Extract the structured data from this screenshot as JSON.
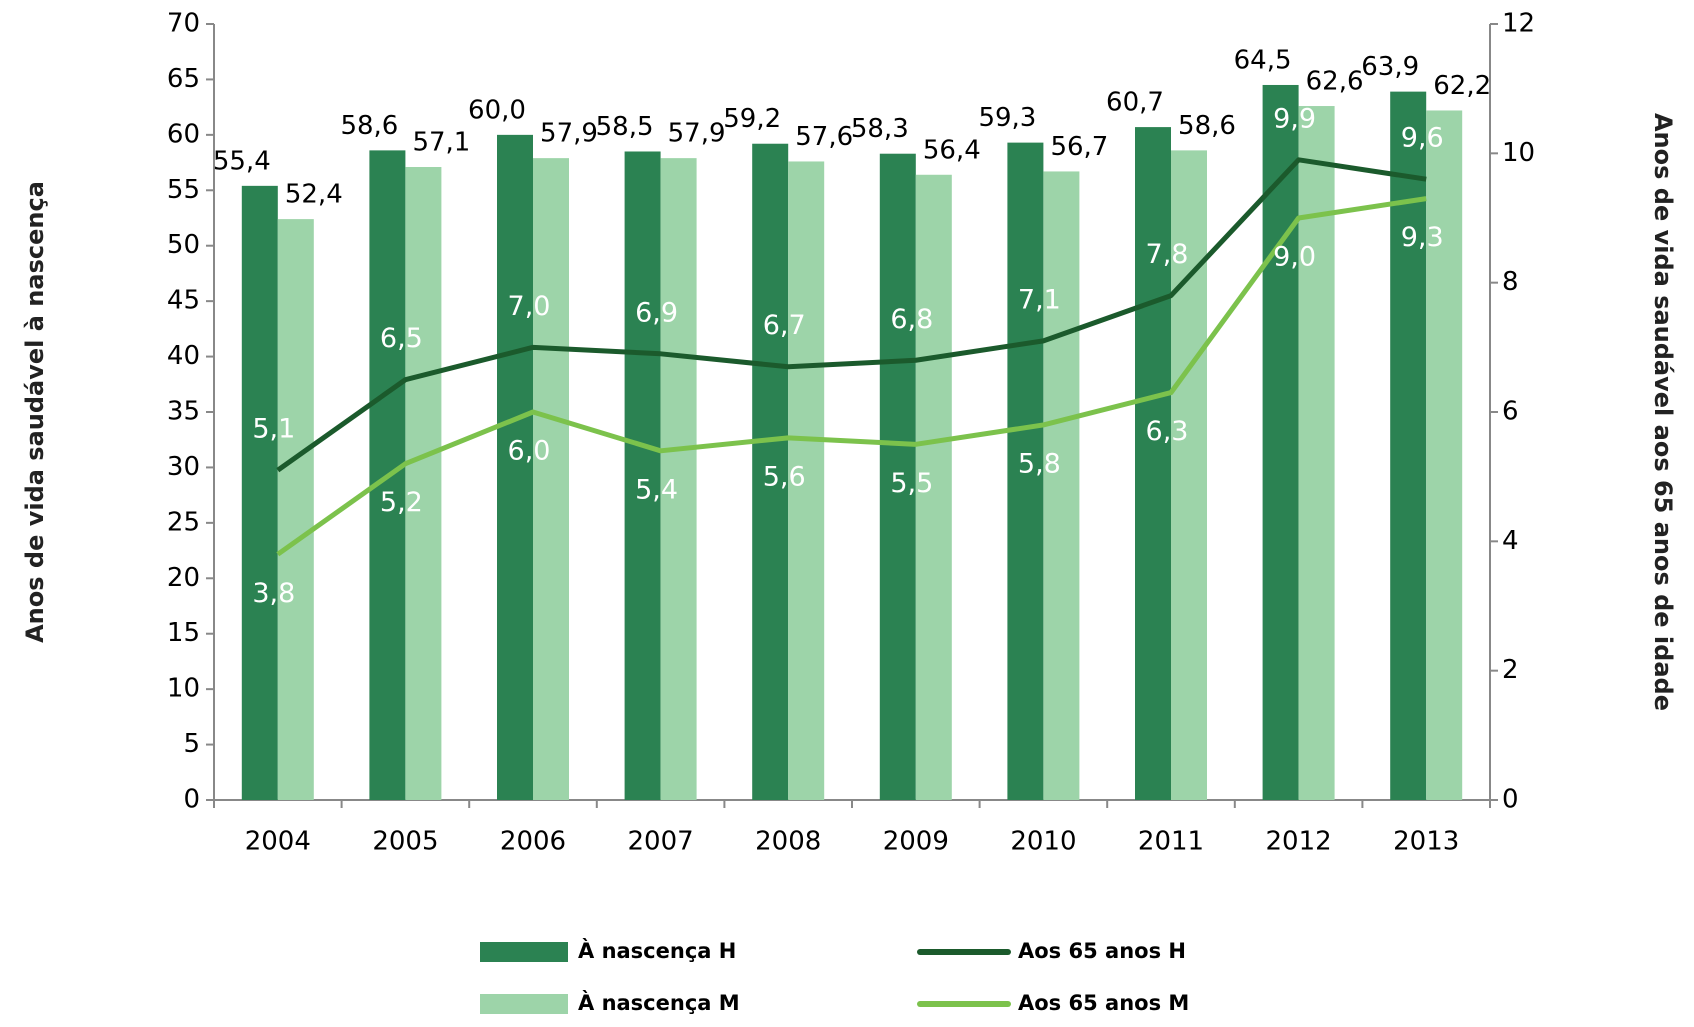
{
  "chart_data": {
    "type": "bar",
    "y_label": "Anos de vida saudável à nascença",
    "y2_label": "Anos de vida saudável aos 65 anos de idade",
    "categories": [
      "2004",
      "2005",
      "2006",
      "2007",
      "2008",
      "2009",
      "2010",
      "2011",
      "2012",
      "2013"
    ],
    "ylim": [
      0,
      70
    ],
    "yticks": [
      0,
      5,
      10,
      15,
      20,
      25,
      30,
      35,
      40,
      45,
      50,
      55,
      60,
      65,
      70
    ],
    "y2lim": [
      0,
      12
    ],
    "y2ticks": [
      0,
      2,
      4,
      6,
      8,
      10,
      12
    ],
    "series": [
      {
        "name": "À nascença H",
        "type": "bar",
        "color": "#2b8252",
        "values": [
          55.4,
          58.6,
          60.0,
          58.5,
          59.2,
          58.3,
          59.3,
          60.7,
          64.5,
          63.9
        ],
        "value_labels": [
          "55,4",
          "58,6",
          "60,0",
          "58,5",
          "59,2",
          "58,3",
          "59,3",
          "60,7",
          "64,5",
          "63,9"
        ]
      },
      {
        "name": "À nascença M",
        "type": "bar",
        "color": "#9dd4a9",
        "values": [
          52.4,
          57.1,
          57.9,
          57.9,
          57.6,
          56.4,
          56.7,
          58.6,
          62.6,
          62.2
        ],
        "value_labels": [
          "52,4",
          "57,1",
          "57,9",
          "57,9",
          "57,6",
          "56,4",
          "56,7",
          "58,6",
          "62,6",
          "62,2"
        ]
      },
      {
        "name": "Aos 65 anos H",
        "type": "line",
        "axis": "y2",
        "color": "#1b5a2c",
        "values": [
          5.1,
          6.5,
          7.0,
          6.9,
          6.7,
          6.8,
          7.1,
          7.8,
          9.9,
          9.6
        ],
        "value_labels": [
          "5,1",
          "6,5",
          "7,0",
          "6,9",
          "6,7",
          "6,8",
          "7,1",
          "7,8",
          "9,9",
          "9,6"
        ]
      },
      {
        "name": "Aos 65 anos M",
        "type": "line",
        "axis": "y2",
        "color": "#7cc24c",
        "values": [
          3.8,
          5.2,
          6.0,
          5.4,
          5.6,
          5.5,
          5.8,
          6.3,
          9.0,
          9.3
        ],
        "value_labels": [
          "3,8",
          "5,2",
          "6,0",
          "5,4",
          "5,6",
          "5,5",
          "5,8",
          "6,3",
          "9,0",
          "9,3"
        ]
      }
    ]
  }
}
